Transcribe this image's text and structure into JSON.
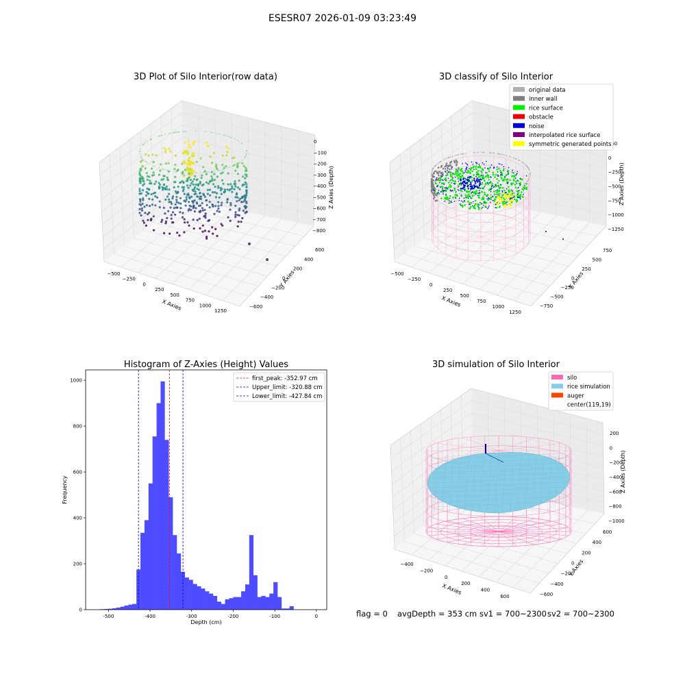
{
  "suptitle": "ESESR07 2026-01-09 03:23:49",
  "status": {
    "flag": "flag = 0",
    "avg_depth": "avgDepth = 353 cm",
    "sv1": "sv1 = 700~2300",
    "sv2": "sv2 = 700~2300"
  },
  "chart_data": [
    {
      "type": "scatter3d",
      "title": "3D Plot of Silo Interior(row data)",
      "xlabel": "X Axies",
      "ylabel": "Y Axies",
      "zlabel": "Z Axies (Depth)",
      "x_ticks": [
        "−500",
        "−250",
        "0",
        "250",
        "500",
        "750",
        "1000",
        "1250"
      ],
      "y_ticks": [
        "−600",
        "−400",
        "−200",
        "0",
        "200",
        "400",
        "600"
      ],
      "z_ticks": [
        "0",
        "−100",
        "−200",
        "−300",
        "−400",
        "−500",
        "−600",
        "−700",
        "−800"
      ],
      "colormap": "viridis",
      "outliers": [
        {
          "x": 1150,
          "y": 100,
          "z": -790
        },
        {
          "x": 1250,
          "y": -50,
          "z": -800
        }
      ]
    },
    {
      "type": "scatter3d",
      "title": "3D classify of Silo Interior",
      "xlabel": "X Axies",
      "ylabel": "Y Axies",
      "zlabel": "Z Axies (Depth)",
      "x_ticks": [
        "−500",
        "−250",
        "0",
        "250",
        "500",
        "750",
        "1000",
        "1250"
      ],
      "y_ticks": [
        "−750",
        "−500",
        "−250",
        "0",
        "250",
        "500",
        "750"
      ],
      "z_ticks": [
        "250",
        "0",
        "−250",
        "−500",
        "−750",
        "−1000",
        "−1250"
      ],
      "legend": [
        {
          "label": "original data",
          "color": "#b0b0b0"
        },
        {
          "label": "inner wall",
          "color": "#808080"
        },
        {
          "label": "rice surface",
          "color": "#00ee00"
        },
        {
          "label": "obstacle",
          "color": "#ee0000"
        },
        {
          "label": "noise",
          "color": "#0000dd"
        },
        {
          "label": "interpolated rice surface",
          "color": "#800080"
        },
        {
          "label": "symmetric generated points",
          "color": "#ffff00"
        }
      ],
      "legend_position": "top-right",
      "wireframe_color": "#ff9ecb"
    },
    {
      "type": "bar",
      "title": "Histogram of Z-Axies (Height) Values",
      "xlabel": "Depth (cm)",
      "ylabel": "Frequency",
      "xlim": [
        -555,
        25
      ],
      "ylim": [
        0,
        1045
      ],
      "x_ticks": [
        -500,
        -400,
        -300,
        -200,
        -100,
        0
      ],
      "y_ticks": [
        0,
        200,
        400,
        600,
        800,
        1000
      ],
      "bar_color": "#4d4dff",
      "bins": {
        "start": -520,
        "width": 9.69,
        "values": [
          2,
          3,
          4,
          6,
          9,
          13,
          18,
          22,
          25,
          175,
          335,
          390,
          550,
          755,
          900,
          995,
          740,
          490,
          325,
          245,
          165,
          140,
          130,
          112,
          102,
          92,
          80,
          70,
          60,
          35,
          25,
          45,
          50,
          55,
          55,
          80,
          110,
          325,
          150,
          55,
          60,
          55,
          70,
          120,
          55,
          5,
          5,
          15
        ]
      },
      "vlines": [
        {
          "label": "first_peak: -352.97 cm",
          "x": -352.97,
          "color": "#ff0000"
        },
        {
          "label": "Upper_limit: -320.88 cm",
          "x": -320.88,
          "color": "#0000cc"
        },
        {
          "label": "Lower_limit: -427.84 cm",
          "x": -427.84,
          "color": "#0000cc"
        }
      ],
      "legend_position": "top-right"
    },
    {
      "type": "surface3d",
      "title": "3D simulation of Silo Interior",
      "xlabel": "X Axies",
      "ylabel": "Y Axies",
      "zlabel": "Z Axies (Depth)",
      "x_ticks": [
        "−400",
        "−200",
        "0",
        "200",
        "400",
        "600"
      ],
      "y_ticks": [
        "−600",
        "−400",
        "−200",
        "0",
        "200",
        "400",
        "600"
      ],
      "z_ticks": [
        "200",
        "0",
        "−200",
        "−400",
        "−600",
        "−800",
        "−1000"
      ],
      "legend": [
        {
          "label": "silo",
          "color": "#ff69b4"
        },
        {
          "label": "rice simulation",
          "color": "#87cde6"
        },
        {
          "label": "auger",
          "color": "#ff4500"
        },
        {
          "label": "center(119,19)",
          "color": ""
        }
      ],
      "legend_position": "top-right"
    }
  ]
}
